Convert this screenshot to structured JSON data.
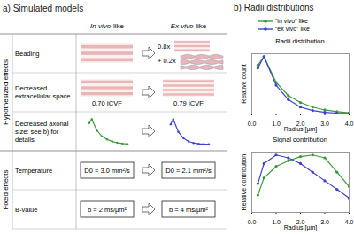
{
  "panel_a": {
    "title": "a) Simulated models",
    "columns": [
      "In vivo-like",
      "Ex vivo-like"
    ],
    "groups": [
      {
        "label": "Hypothesized effects",
        "rows": [
          {
            "label": "Beading",
            "ex_vivo_parts": [
              "0.8x",
              "+ 0.2x"
            ]
          },
          {
            "label": "Decreased extracellular space",
            "in_vivo": "0.70 ICVF",
            "ex_vivo": "0.79 ICVF"
          },
          {
            "label": "Decreased axonal size: see b) for details"
          }
        ]
      },
      {
        "label": "Fixed effects",
        "rows": [
          {
            "label": "Temperature",
            "in_vivo": "D0 = 3.0 mm²/s",
            "ex_vivo": "D0 = 2.1 mm²/s"
          },
          {
            "label": "B-value",
            "in_vivo": "b = 2 ms/µm²",
            "ex_vivo": "b = 4 ms/µm²"
          }
        ]
      }
    ]
  },
  "panel_b": {
    "title": "b) Radii distributions"
  },
  "chart_data": [
    {
      "type": "line",
      "title": "Radii distribution",
      "x_label": "Radius [µm]",
      "y_label": "Relative count",
      "x": [
        0.25,
        0.5,
        1,
        1.5,
        2,
        2.5,
        3,
        3.5,
        4
      ],
      "series": [
        {
          "name": "“in vivo” like",
          "color": "#3a9a3a",
          "marker": "circle",
          "values": [
            0.85,
            1.0,
            0.55,
            0.32,
            0.2,
            0.12,
            0.07,
            0.04,
            0.02
          ]
        },
        {
          "name": "“ex vivo” like",
          "color": "#3f3fd0",
          "marker": "circle",
          "values": [
            0.8,
            1.0,
            0.5,
            0.25,
            0.12,
            0.06,
            0.03,
            0.015,
            0.01
          ]
        }
      ],
      "xlim": [
        0,
        4
      ],
      "xticks": [
        0,
        1,
        2,
        3,
        4
      ],
      "ylim": [
        0,
        1.05
      ],
      "tick_labels": "x",
      "legend": "top"
    },
    {
      "type": "line",
      "title": "Signal contribution",
      "x_label": "Radius [µm]",
      "y_label": "Relative contribution",
      "x": [
        0.25,
        0.5,
        1,
        1.5,
        2,
        2.5,
        3,
        3.5,
        4
      ],
      "series": [
        {
          "name": "“in vivo” like",
          "color": "#3a9a3a",
          "marker": "circle",
          "values": [
            0.3,
            0.6,
            0.8,
            0.9,
            0.97,
            1.0,
            0.95,
            0.7,
            0.45
          ]
        },
        {
          "name": "“ex vivo” like",
          "color": "#3f3fd0",
          "marker": "circle",
          "values": [
            0.5,
            0.85,
            1.0,
            0.95,
            0.85,
            0.7,
            0.55,
            0.4,
            0.25
          ]
        }
      ],
      "xlim": [
        0,
        4
      ],
      "xticks": [
        0,
        1,
        2,
        3,
        4
      ],
      "ylim": [
        0,
        1.05
      ],
      "tick_labels": "x"
    }
  ]
}
